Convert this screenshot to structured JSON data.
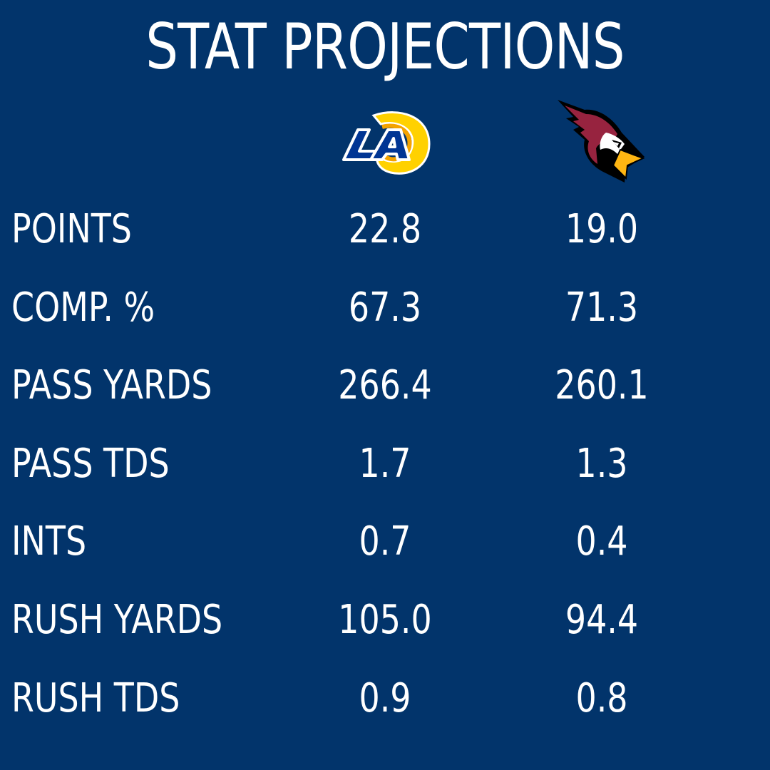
{
  "title": "STAT PROJECTIONS",
  "teams": [
    {
      "icon": "rams-la-logo-icon",
      "colors": {
        "primary": "#003594",
        "secondary": "#FFD100"
      }
    },
    {
      "icon": "cardinals-logo-icon",
      "colors": {
        "primary": "#97233F",
        "secondary": "#FFB612"
      }
    }
  ],
  "colors": {
    "background": "#02346b",
    "text": "#ffffff"
  },
  "rows": [
    {
      "label": "POINTS",
      "values": [
        "22.8",
        "19.0"
      ]
    },
    {
      "label": "COMP. %",
      "values": [
        "67.3",
        "71.3"
      ]
    },
    {
      "label": "PASS YARDS",
      "values": [
        "266.4",
        "260.1"
      ]
    },
    {
      "label": "PASS TDS",
      "values": [
        "1.7",
        "1.3"
      ]
    },
    {
      "label": "INTS",
      "values": [
        "0.7",
        "0.4"
      ]
    },
    {
      "label": "RUSH YARDS",
      "values": [
        "105.0",
        "94.4"
      ]
    },
    {
      "label": "RUSH TDS",
      "values": [
        "0.9",
        "0.8"
      ]
    }
  ]
}
